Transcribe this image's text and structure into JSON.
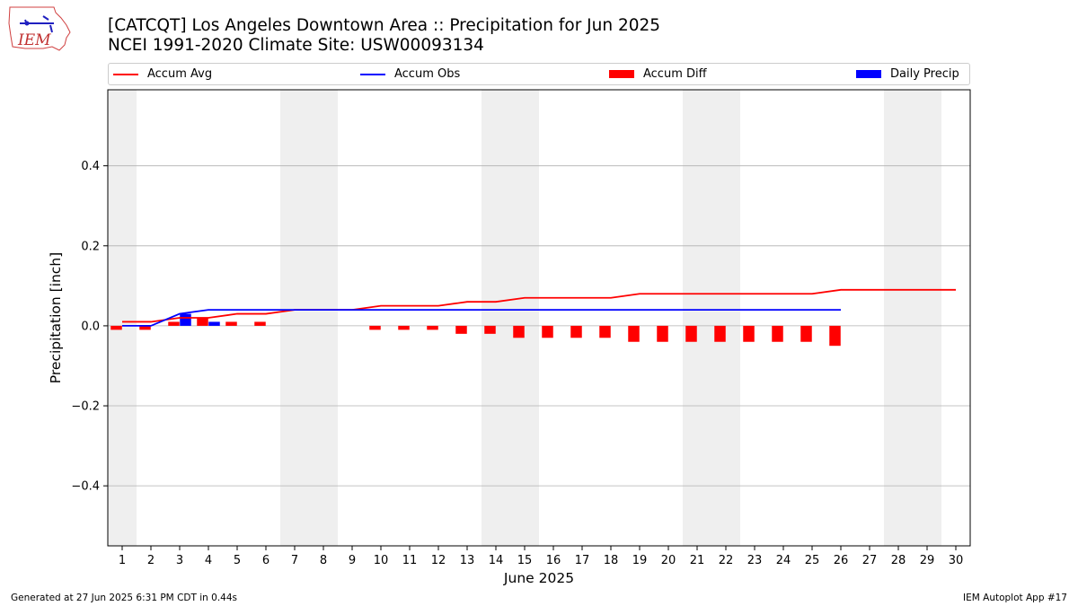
{
  "logo": {
    "text": "IEM"
  },
  "title": {
    "line1": "[CATCQT] Los Angeles Downtown Area :: Precipitation for Jun 2025",
    "line2": "NCEI 1991-2020 Climate Site: USW00093134"
  },
  "legend": {
    "accum_avg": "Accum Avg",
    "accum_obs": "Accum Obs",
    "accum_diff": "Accum Diff",
    "daily_precip": "Daily Precip"
  },
  "footer": {
    "left": "Generated at 27 Jun 2025 6:31 PM CDT in 0.44s",
    "right": "IEM Autoplot App #17"
  },
  "chart_data": {
    "type": "bar",
    "xlabel": "June 2025",
    "ylabel": "Precipitation [inch]",
    "xlim": [
      0.5,
      30.5
    ],
    "ylim": [
      -0.55,
      0.59
    ],
    "yticks": [
      -0.4,
      -0.2,
      0.0,
      0.2,
      0.4
    ],
    "ytick_labels": [
      "−0.4",
      "−0.2",
      "0.0",
      "0.2",
      "0.4"
    ],
    "xticks": [
      1,
      2,
      3,
      4,
      5,
      6,
      7,
      8,
      9,
      10,
      11,
      12,
      13,
      14,
      15,
      16,
      17,
      18,
      19,
      20,
      21,
      22,
      23,
      24,
      25,
      26,
      27,
      28,
      29,
      30
    ],
    "grid": "horizontal",
    "weekend_shading": [
      [
        0.5,
        1.5
      ],
      [
        6.5,
        8.5
      ],
      [
        13.5,
        15.5
      ],
      [
        20.5,
        22.5
      ],
      [
        27.5,
        29.5
      ]
    ],
    "colors": {
      "accum_avg": "#ff0000",
      "accum_obs": "#0000ff",
      "accum_diff": "#ff0000",
      "daily_precip": "#0000ff",
      "shade": "#efefef"
    },
    "series": [
      {
        "name": "Accum Avg",
        "kind": "line",
        "x": [
          1,
          2,
          3,
          4,
          5,
          6,
          7,
          8,
          9,
          10,
          11,
          12,
          13,
          14,
          15,
          16,
          17,
          18,
          19,
          20,
          21,
          22,
          23,
          24,
          25,
          26,
          27,
          28,
          29,
          30
        ],
        "values": [
          0.01,
          0.01,
          0.02,
          0.02,
          0.03,
          0.03,
          0.04,
          0.04,
          0.04,
          0.05,
          0.05,
          0.05,
          0.06,
          0.06,
          0.07,
          0.07,
          0.07,
          0.07,
          0.08,
          0.08,
          0.08,
          0.08,
          0.08,
          0.08,
          0.08,
          0.09,
          0.09,
          0.09,
          0.09,
          0.09
        ]
      },
      {
        "name": "Accum Obs",
        "kind": "line",
        "x": [
          1,
          2,
          3,
          4,
          5,
          6,
          7,
          8,
          9,
          10,
          11,
          12,
          13,
          14,
          15,
          16,
          17,
          18,
          19,
          20,
          21,
          22,
          23,
          24,
          25,
          26
        ],
        "values": [
          0.0,
          0.0,
          0.03,
          0.04,
          0.04,
          0.04,
          0.04,
          0.04,
          0.04,
          0.04,
          0.04,
          0.04,
          0.04,
          0.04,
          0.04,
          0.04,
          0.04,
          0.04,
          0.04,
          0.04,
          0.04,
          0.04,
          0.04,
          0.04,
          0.04,
          0.04
        ]
      },
      {
        "name": "Accum Diff",
        "kind": "bar",
        "x": [
          1,
          2,
          3,
          4,
          5,
          6,
          7,
          8,
          9,
          10,
          11,
          12,
          13,
          14,
          15,
          16,
          17,
          18,
          19,
          20,
          21,
          22,
          23,
          24,
          25,
          26
        ],
        "values": [
          -0.01,
          -0.01,
          0.01,
          0.02,
          0.01,
          0.01,
          0.0,
          0.0,
          0.0,
          -0.01,
          -0.01,
          -0.01,
          -0.02,
          -0.02,
          -0.03,
          -0.03,
          -0.03,
          -0.03,
          -0.04,
          -0.04,
          -0.04,
          -0.04,
          -0.04,
          -0.04,
          -0.04,
          -0.05
        ]
      },
      {
        "name": "Daily Precip",
        "kind": "bar",
        "x": [
          3,
          4
        ],
        "values": [
          0.03,
          0.01
        ]
      }
    ]
  }
}
